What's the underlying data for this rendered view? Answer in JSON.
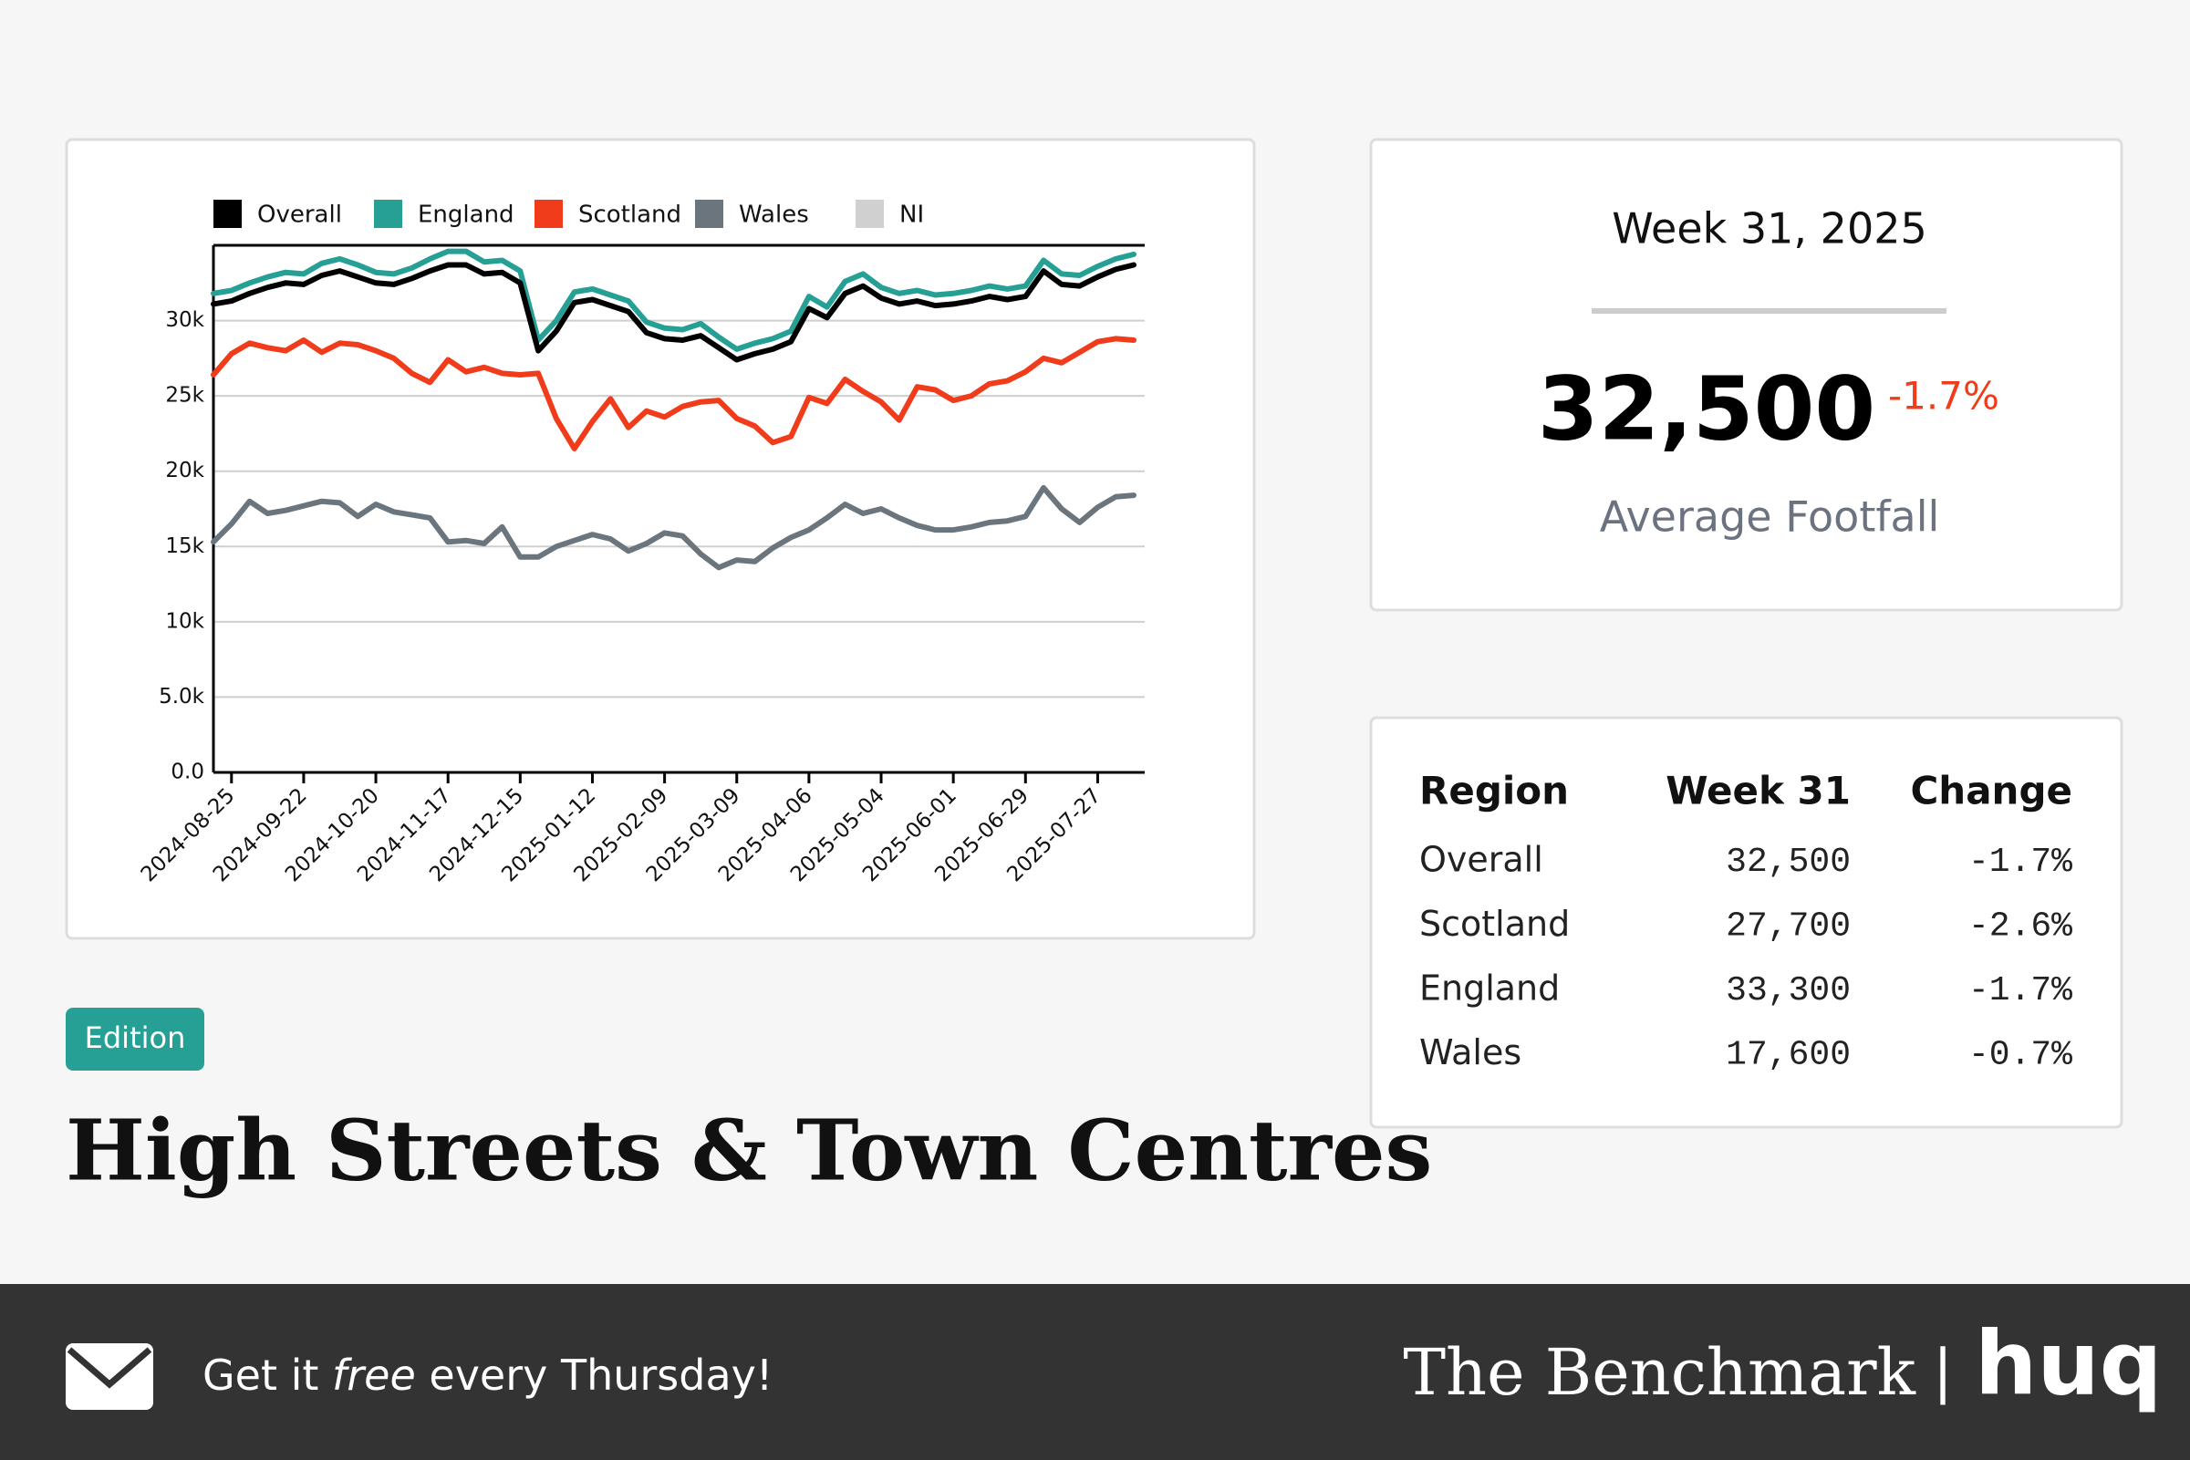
{
  "chart_data": {
    "type": "line",
    "x": [
      "2024-08-18",
      "2024-08-25",
      "2024-09-01",
      "2024-09-08",
      "2024-09-15",
      "2024-09-22",
      "2024-09-29",
      "2024-10-06",
      "2024-10-13",
      "2024-10-20",
      "2024-10-27",
      "2024-11-03",
      "2024-11-10",
      "2024-11-17",
      "2024-11-24",
      "2024-12-01",
      "2024-12-08",
      "2024-12-15",
      "2024-12-22",
      "2024-12-29",
      "2025-01-05",
      "2025-01-12",
      "2025-01-19",
      "2025-01-26",
      "2025-02-02",
      "2025-02-09",
      "2025-02-16",
      "2025-02-23",
      "2025-03-02",
      "2025-03-09",
      "2025-03-16",
      "2025-03-23",
      "2025-03-30",
      "2025-04-06",
      "2025-04-13",
      "2025-04-20",
      "2025-04-27",
      "2025-05-04",
      "2025-05-11",
      "2025-05-18",
      "2025-05-25",
      "2025-06-01",
      "2025-06-08",
      "2025-06-15",
      "2025-06-22",
      "2025-06-29",
      "2025-07-06",
      "2025-07-13",
      "2025-07-20",
      "2025-07-27",
      "2025-08-03",
      "2025-08-10"
    ],
    "xticks": [
      "2024-08-25",
      "2024-09-22",
      "2024-10-20",
      "2024-11-17",
      "2024-12-15",
      "2025-01-12",
      "2025-02-09",
      "2025-03-09",
      "2025-04-06",
      "2025-05-04",
      "2025-06-01",
      "2025-06-29",
      "2025-07-27"
    ],
    "ylim": [
      0,
      35000
    ],
    "yticks": [
      {
        "value": 0,
        "label": "0.0"
      },
      {
        "value": 5000,
        "label": "5.0k"
      },
      {
        "value": 10000,
        "label": "10k"
      },
      {
        "value": 15000,
        "label": "15k"
      },
      {
        "value": 20000,
        "label": "20k"
      },
      {
        "value": 25000,
        "label": "25k"
      },
      {
        "value": 30000,
        "label": "30k"
      }
    ],
    "grid": true,
    "series": [
      {
        "name": "Overall",
        "color": "#000000",
        "values": [
          31100,
          31300,
          31800,
          32200,
          32500,
          32400,
          33000,
          33300,
          32900,
          32500,
          32400,
          32800,
          33300,
          33700,
          33700,
          33100,
          33200,
          32500,
          28000,
          29300,
          31200,
          31400,
          31000,
          30600,
          29200,
          28800,
          28700,
          29000,
          28200,
          27400,
          27800,
          28100,
          28600,
          30800,
          30200,
          31800,
          32300,
          31500,
          31100,
          31300,
          31000,
          31100,
          31300,
          31600,
          31400,
          31600,
          33300,
          32400,
          32300,
          32900,
          33400,
          33700
        ]
      },
      {
        "name": "England",
        "color": "#26a095",
        "values": [
          31800,
          32000,
          32500,
          32900,
          33200,
          33100,
          33800,
          34100,
          33700,
          33200,
          33100,
          33500,
          34100,
          34600,
          34600,
          33900,
          34000,
          33300,
          28700,
          30000,
          31900,
          32100,
          31700,
          31300,
          29900,
          29500,
          29400,
          29800,
          28900,
          28100,
          28500,
          28800,
          29300,
          31600,
          30900,
          32600,
          33100,
          32200,
          31800,
          32000,
          31700,
          31800,
          32000,
          32300,
          32100,
          32300,
          34000,
          33100,
          33000,
          33600,
          34100,
          34400
        ]
      },
      {
        "name": "Scotland",
        "color": "#f03c1a",
        "values": [
          26400,
          27800,
          28500,
          28200,
          28000,
          28700,
          27900,
          28500,
          28400,
          28000,
          27500,
          26500,
          25900,
          27400,
          26600,
          26900,
          26500,
          26400,
          26500,
          23500,
          21500,
          23300,
          24800,
          22900,
          24000,
          23600,
          24300,
          24600,
          24700,
          23500,
          23000,
          21900,
          22300,
          24900,
          24500,
          26100,
          25300,
          24600,
          23400,
          25600,
          25400,
          24700,
          25000,
          25800,
          26000,
          26600,
          27500,
          27200,
          27900,
          28600,
          28800,
          28700
        ]
      },
      {
        "name": "Wales",
        "color": "#6b757d",
        "values": [
          15300,
          16500,
          18000,
          17200,
          17400,
          17700,
          18000,
          17900,
          17000,
          17800,
          17300,
          17100,
          16900,
          15300,
          15400,
          15200,
          16300,
          14300,
          14300,
          15000,
          15400,
          15800,
          15500,
          14700,
          15200,
          15900,
          15700,
          14500,
          13600,
          14100,
          14000,
          14900,
          15600,
          16100,
          16900,
          17800,
          17200,
          17500,
          16900,
          16400,
          16100,
          16100,
          16300,
          16600,
          16700,
          17000,
          18900,
          17500,
          16600,
          17600,
          18300,
          18400
        ]
      },
      {
        "name": "NI",
        "color": "#d0d0d0",
        "values": [
          null,
          null,
          null,
          null,
          null,
          null,
          null,
          null,
          null,
          null,
          null,
          null,
          null,
          null,
          null,
          null,
          null,
          null,
          null,
          null,
          null,
          null,
          null,
          null,
          null,
          null,
          null,
          null,
          null,
          null,
          null,
          null,
          null,
          null,
          null,
          null,
          null,
          null,
          null,
          null,
          null,
          null,
          null,
          null,
          null,
          null,
          null,
          null,
          null,
          null,
          null,
          null
        ]
      }
    ]
  },
  "stat_card": {
    "week": "Week 31, 2025",
    "value": "32,500",
    "change": "-1.7%",
    "label": "Average Footfall"
  },
  "table": {
    "header": [
      "Region",
      "Week 31",
      "Change"
    ],
    "rows": [
      [
        "Overall",
        "32,500",
        "-1.7%"
      ],
      [
        "Scotland",
        "27,700",
        "-2.6%"
      ],
      [
        "England",
        "33,300",
        "-1.7%"
      ],
      [
        "Wales",
        "17,600",
        "-0.7%"
      ]
    ]
  },
  "badge": "Edition",
  "title": "High Streets & Town Centres",
  "footer": {
    "cta": [
      "Get it ",
      "free",
      " every Thursday!"
    ],
    "brand": "The Benchmark",
    "separator": "|",
    "logo": "huq"
  }
}
